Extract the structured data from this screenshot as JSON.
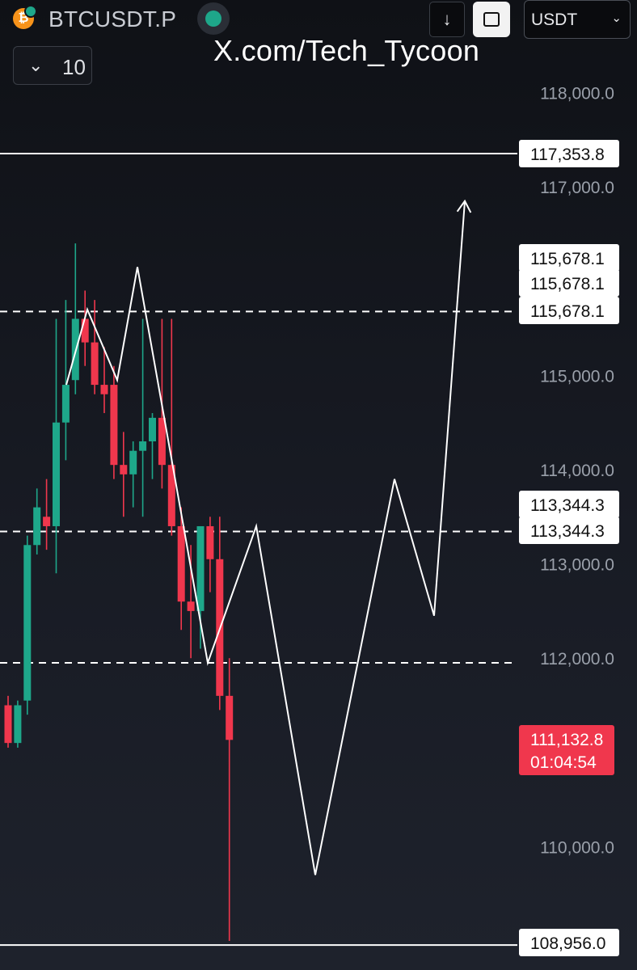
{
  "header": {
    "coin_icon_glyph": "₿",
    "symbol": "BTCUSDT.P",
    "currency": "USDT",
    "interval": "10",
    "icons": [
      "bitcoin-icon",
      "perpetual-badge-icon",
      "status-dot-icon",
      "arrow-down-icon",
      "frame-icon",
      "chevron-down-icon"
    ]
  },
  "watermark": "X.com/Tech_Tycoon",
  "chart_data": {
    "type": "candlestick",
    "ylim": [
      108950,
      118800
    ],
    "y_ticks": [
      {
        "value": 118000,
        "label": "118,000.0"
      },
      {
        "value": 117000,
        "label": "117,000.0"
      },
      {
        "value": 115000,
        "label": "115,000.0"
      },
      {
        "value": 114000,
        "label": "114,000.0"
      },
      {
        "value": 113000,
        "label": "113,000.0"
      },
      {
        "value": 112000,
        "label": "112,000.0"
      },
      {
        "value": 110000,
        "label": "110,000.0"
      }
    ],
    "candles": [
      {
        "o": 111500,
        "h": 111600,
        "l": 111050,
        "c": 111100
      },
      {
        "o": 111100,
        "h": 111550,
        "l": 111050,
        "c": 111500
      },
      {
        "o": 111550,
        "h": 113300,
        "l": 111400,
        "c": 113200
      },
      {
        "o": 113200,
        "h": 113800,
        "l": 113100,
        "c": 113600
      },
      {
        "o": 113500,
        "h": 113900,
        "l": 113150,
        "c": 113400
      },
      {
        "o": 113400,
        "h": 115600,
        "l": 112900,
        "c": 114500
      },
      {
        "o": 114500,
        "h": 115800,
        "l": 114100,
        "c": 114900
      },
      {
        "o": 114950,
        "h": 116400,
        "l": 114800,
        "c": 115600
      },
      {
        "o": 115600,
        "h": 115900,
        "l": 115100,
        "c": 115350
      },
      {
        "o": 115350,
        "h": 115800,
        "l": 114800,
        "c": 114900
      },
      {
        "o": 114900,
        "h": 115300,
        "l": 114600,
        "c": 114800
      },
      {
        "o": 114900,
        "h": 115100,
        "l": 113900,
        "c": 114050
      },
      {
        "o": 114050,
        "h": 114400,
        "l": 113500,
        "c": 113950
      },
      {
        "o": 113950,
        "h": 114300,
        "l": 113600,
        "c": 114200
      },
      {
        "o": 114200,
        "h": 115600,
        "l": 113500,
        "c": 114300
      },
      {
        "o": 114300,
        "h": 114600,
        "l": 113900,
        "c": 114550
      },
      {
        "o": 114550,
        "h": 115600,
        "l": 113800,
        "c": 114050
      },
      {
        "o": 114050,
        "h": 115600,
        "l": 113300,
        "c": 113400
      },
      {
        "o": 113400,
        "h": 113600,
        "l": 112300,
        "c": 112600
      },
      {
        "o": 112600,
        "h": 113200,
        "l": 112000,
        "c": 112500
      },
      {
        "o": 112500,
        "h": 113400,
        "l": 112100,
        "c": 113400
      },
      {
        "o": 113400,
        "h": 113500,
        "l": 112700,
        "c": 113050
      },
      {
        "o": 113050,
        "h": 113500,
        "l": 111450,
        "c": 111600
      },
      {
        "o": 111600,
        "h": 112000,
        "l": 109000,
        "c": 111132.8
      }
    ],
    "horizontal_levels": [
      {
        "value": 117353.8,
        "label": "117,353.8",
        "style": "solid"
      },
      {
        "value": 115678.1,
        "label": "115,678.1",
        "style": "dashed"
      },
      {
        "value": 113344.3,
        "label": "113,344.3",
        "style": "dashed"
      },
      {
        "value": 111950,
        "label": "",
        "style": "dashed"
      },
      {
        "value": 108956.0,
        "label": "108,956.0",
        "style": "solid"
      }
    ],
    "stacked_level_labels": [
      {
        "label": "115,678.1",
        "value": 115678.1
      },
      {
        "label": "115,678.1",
        "value": 115678.1
      },
      {
        "label": "113,344.3",
        "value": 113344.3
      }
    ],
    "projection_path": [
      {
        "x": 82,
        "price": 114900
      },
      {
        "x": 108,
        "price": 115700
      },
      {
        "x": 145,
        "price": 114950
      },
      {
        "x": 170,
        "price": 116150
      },
      {
        "x": 257,
        "price": 111950
      },
      {
        "x": 317,
        "price": 113400
      },
      {
        "x": 390,
        "price": 109700
      },
      {
        "x": 488,
        "price": 113900
      },
      {
        "x": 537,
        "price": 112450
      },
      {
        "x": 575,
        "price": 116850
      }
    ],
    "projection_arrowhead": true,
    "last_price": {
      "value": 111132.8,
      "label": "111,132.8",
      "countdown": "01:04:54"
    },
    "colors": {
      "up": "#1ea78a",
      "down": "#f0374d",
      "line": "#ffffff",
      "axis_text": "#9aa0aa"
    }
  }
}
